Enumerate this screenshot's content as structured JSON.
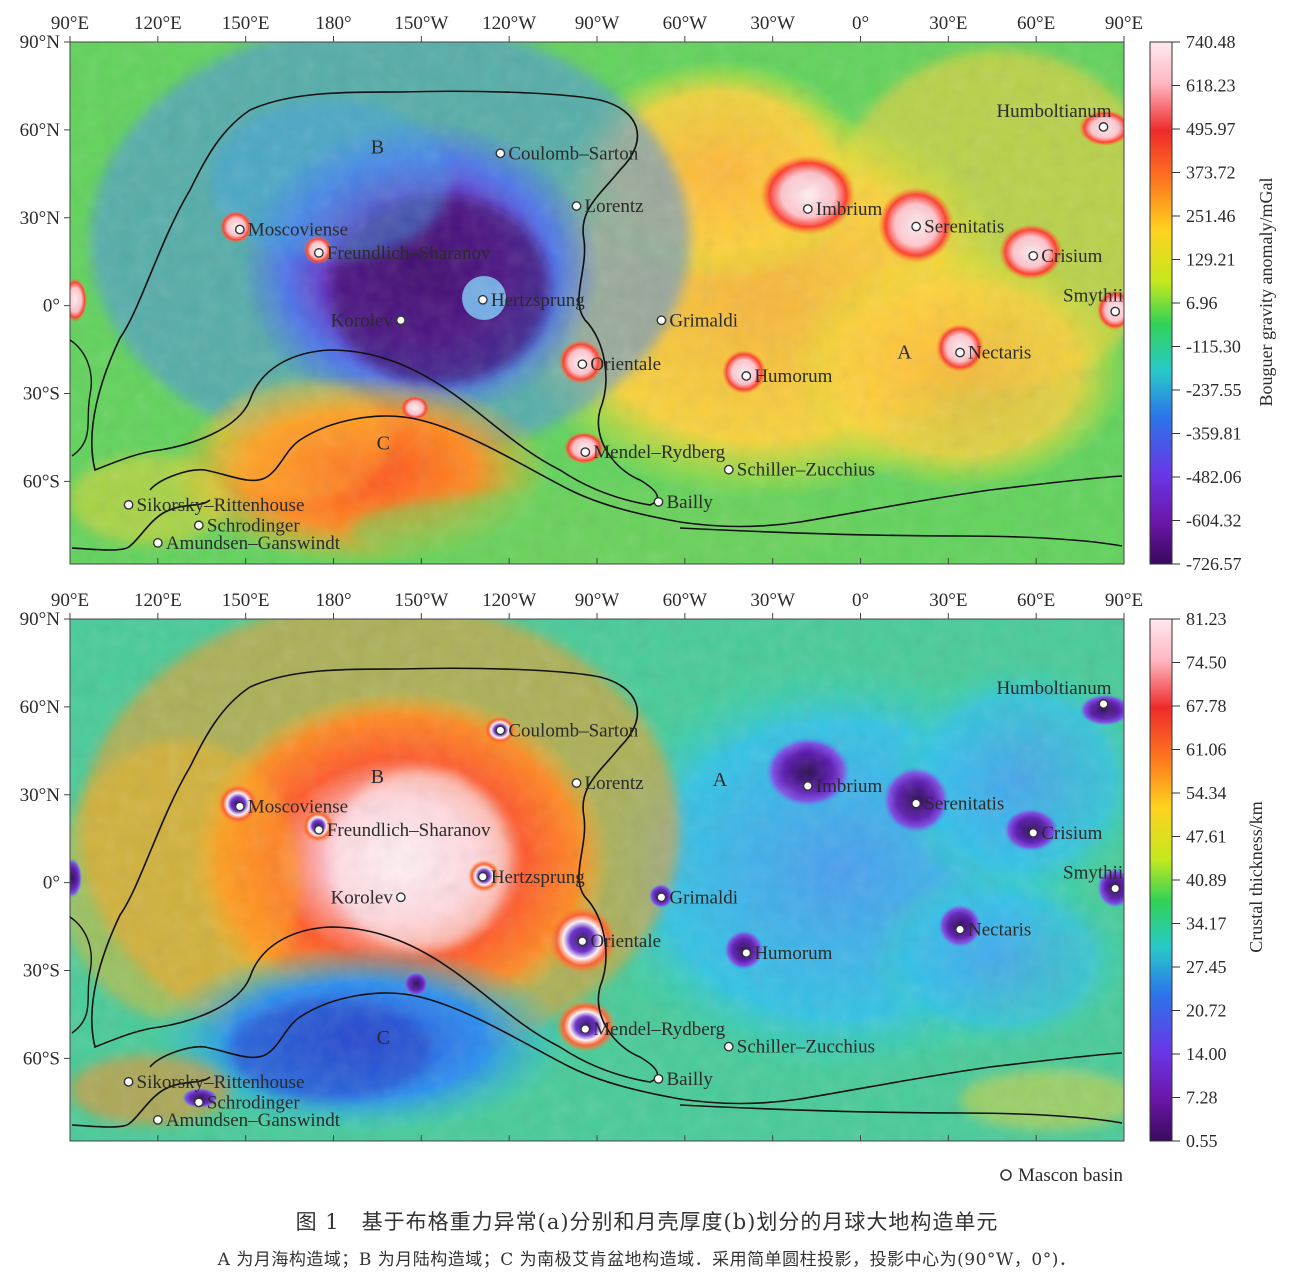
{
  "figure": {
    "caption_title": "图 1　基于布格重力异常(a)分别和月壳厚度(b)划分的月球大地构造单元",
    "caption_note": "A 为月海构造域；B 为月陆构造域；C 为南极艾肯盆地构造域．采用简单圆柱投影，投影中心为(90°W，0°)．",
    "legend_label": "Mascon basin"
  },
  "axes": {
    "lon_labels": [
      "90°E",
      "120°E",
      "150°E",
      "180°",
      "150°W",
      "120°W",
      "90°W",
      "60°W",
      "30°W",
      "0°",
      "30°E",
      "60°E",
      "90°E"
    ],
    "lat_labels": [
      "90°N",
      "60°N",
      "30°N",
      "0°",
      "30°S",
      "60°S"
    ]
  },
  "panels": [
    {
      "id": "a",
      "colorbar_title": "Bouguer gravity anomaly/mGal",
      "colorbar_ticks": [
        "740.48",
        "618.23",
        "495.97",
        "373.72",
        "251.46",
        "129.21",
        "6.96",
        "-115.30",
        "-237.55",
        "-359.81",
        "-482.06",
        "-604.32",
        "-726.57"
      ],
      "domain_labels": [
        {
          "text": "A",
          "lon": 15,
          "lat": -16
        },
        {
          "text": "B",
          "lon": -165,
          "lat": 54
        },
        {
          "text": "C",
          "lon": -163,
          "lat": -47
        }
      ]
    },
    {
      "id": "b",
      "colorbar_title": "Crustal thickness/km",
      "colorbar_ticks": [
        "81.23",
        "74.50",
        "67.78",
        "61.06",
        "54.34",
        "47.61",
        "40.89",
        "34.17",
        "27.45",
        "20.72",
        "14.00",
        "7.28",
        "0.55"
      ],
      "domain_labels": [
        {
          "text": "A",
          "lon": -48,
          "lat": 35
        },
        {
          "text": "B",
          "lon": -165,
          "lat": 36
        },
        {
          "text": "C",
          "lon": -163,
          "lat": -53
        }
      ]
    }
  ],
  "basins": [
    {
      "name": "Humboltianum",
      "lon": 83,
      "lat": 61,
      "label_side": "above-left"
    },
    {
      "name": "Coulomb–Sarton",
      "lon": -123,
      "lat": 52
    },
    {
      "name": "Lorentz",
      "lon": -97,
      "lat": 34
    },
    {
      "name": "Imbrium",
      "lon": -18,
      "lat": 33
    },
    {
      "name": "Serenitatis",
      "lon": 19,
      "lat": 27
    },
    {
      "name": "Crisium",
      "lon": 59,
      "lat": 17
    },
    {
      "name": "Smythii",
      "lon": 87,
      "lat": -2,
      "label_side": "above-left"
    },
    {
      "name": "Moscoviense",
      "lon": 148,
      "lat": 26
    },
    {
      "name": "Freundlich–Sharanov",
      "lon": 175,
      "lat": 18
    },
    {
      "name": "Hertzsprung",
      "lon": -129,
      "lat": 2
    },
    {
      "name": "Korolev",
      "lon": -157,
      "lat": -5,
      "label_side": "left"
    },
    {
      "name": "Grimaldi",
      "lon": -68,
      "lat": -5
    },
    {
      "name": "Orientale",
      "lon": -95,
      "lat": -20
    },
    {
      "name": "Nectaris",
      "lon": 34,
      "lat": -16
    },
    {
      "name": "Humorum",
      "lon": -39,
      "lat": -24
    },
    {
      "name": "Mendel–Rydberg",
      "lon": -94,
      "lat": -50
    },
    {
      "name": "Schiller–Zucchius",
      "lon": -45,
      "lat": -56
    },
    {
      "name": "Bailly",
      "lon": -69,
      "lat": -67
    },
    {
      "name": "Sikorsky–Rittenhouse",
      "lon": 110,
      "lat": -68
    },
    {
      "name": "Schrodinger",
      "lon": 134,
      "lat": -75
    },
    {
      "name": "Amundsen–Ganswindt",
      "lon": 120,
      "lat": -81
    }
  ]
}
